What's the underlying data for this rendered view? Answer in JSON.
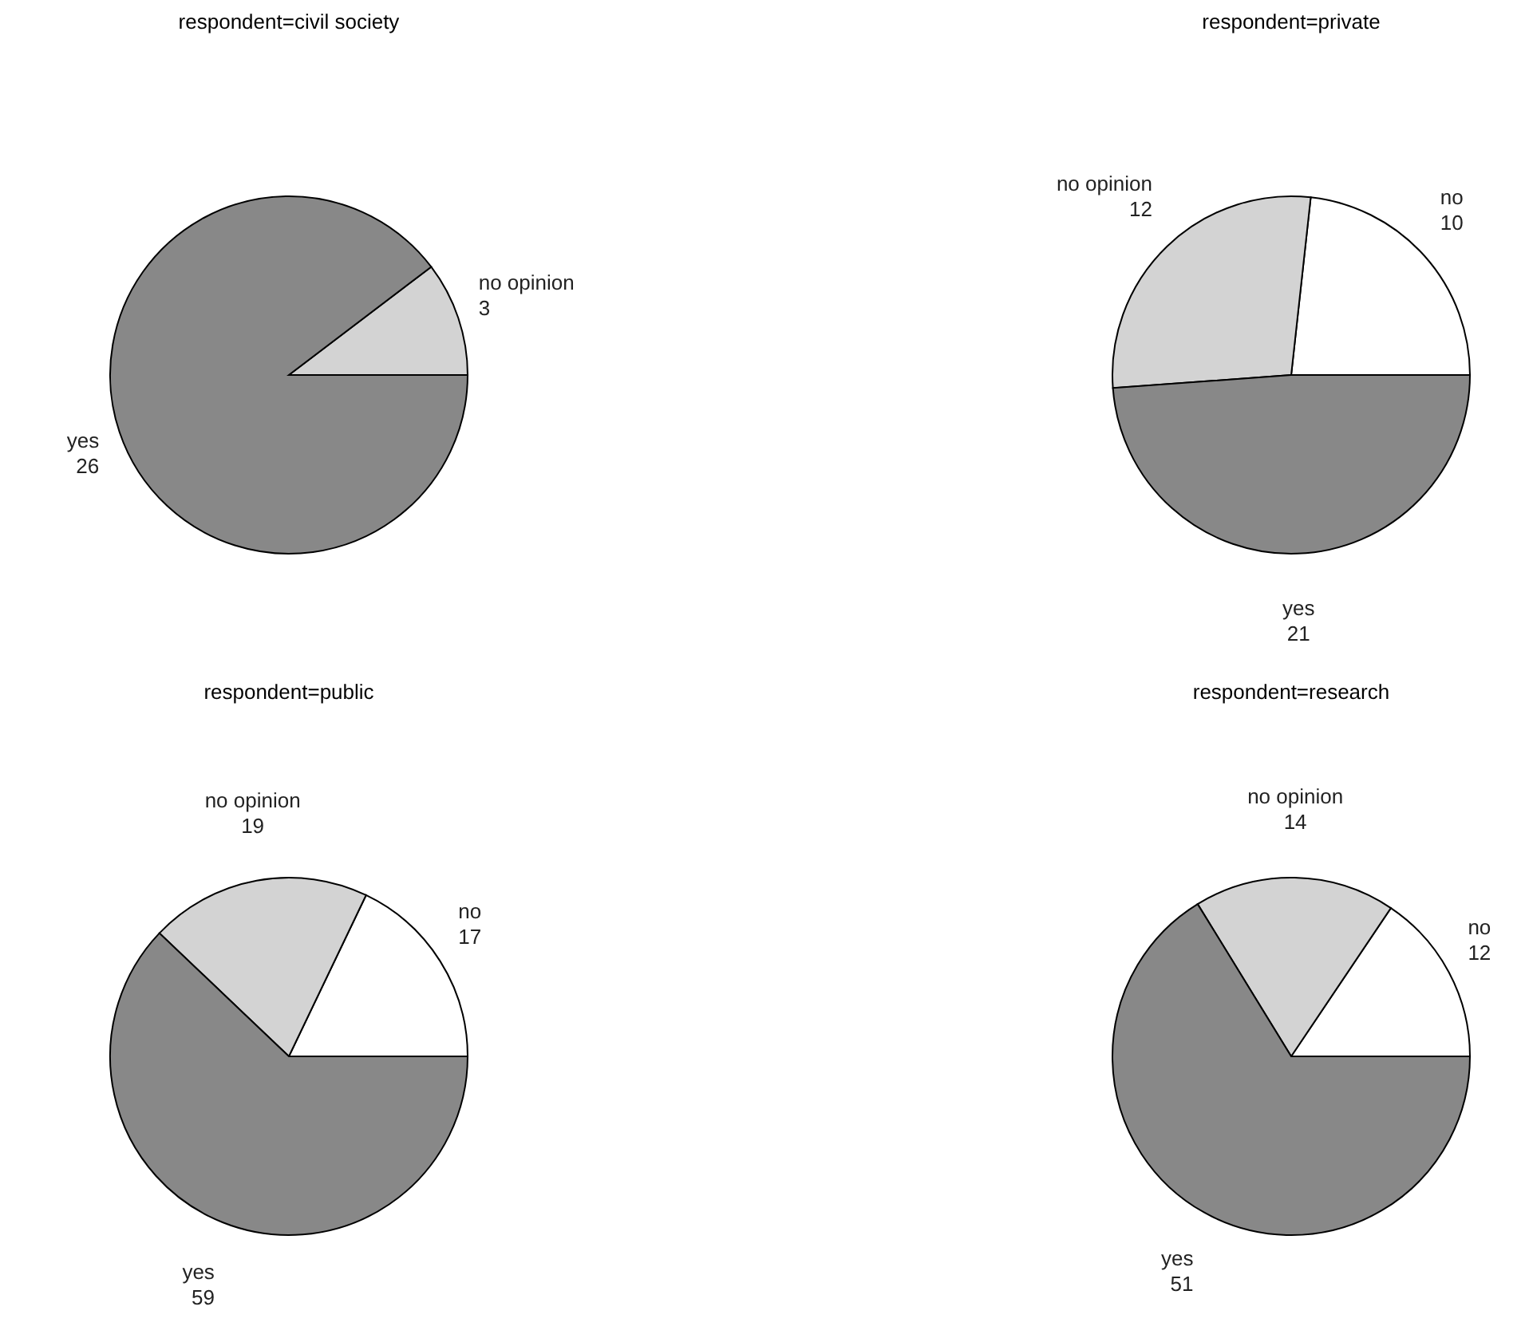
{
  "chart_data": [
    {
      "type": "pie",
      "title": "respondent=civil society",
      "categories": [
        "no opinion",
        "yes"
      ],
      "values": [
        3,
        26
      ],
      "colors": [
        "#d3d3d3",
        "#888888"
      ],
      "data_labels": true
    },
    {
      "type": "pie",
      "title": "respondent=private",
      "categories": [
        "no",
        "no opinion",
        "yes"
      ],
      "values": [
        10,
        12,
        21
      ],
      "colors": [
        "#ffffff",
        "#d3d3d3",
        "#888888"
      ],
      "data_labels": true
    },
    {
      "type": "pie",
      "title": "respondent=public",
      "categories": [
        "no",
        "no opinion",
        "yes"
      ],
      "values": [
        17,
        19,
        59
      ],
      "colors": [
        "#ffffff",
        "#d3d3d3",
        "#888888"
      ],
      "data_labels": true
    },
    {
      "type": "pie",
      "title": "respondent=research",
      "categories": [
        "no",
        "no opinion",
        "yes"
      ],
      "values": [
        12,
        14,
        51
      ],
      "colors": [
        "#ffffff",
        "#d3d3d3",
        "#888888"
      ],
      "data_labels": true
    }
  ]
}
